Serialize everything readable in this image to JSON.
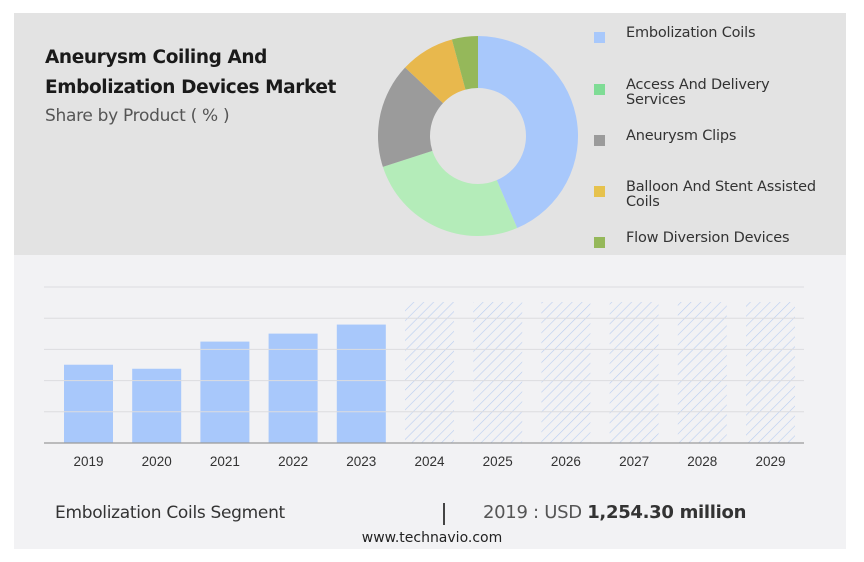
{
  "header": {
    "title_line1": "Aneurysm Coiling And",
    "title_line2": "Embolization Devices Market",
    "subtitle": "Share by Product ( % )"
  },
  "chart_data": [
    {
      "type": "pie",
      "variant": "donut",
      "title": "Share by Product ( % )",
      "legend_position": "right",
      "slices": [
        {
          "label": "Embolization Coils",
          "value": 43.6,
          "color": "#a8c8fb"
        },
        {
          "label": "Access And Delivery Services",
          "value": 26.4,
          "color": "#b4ecb9"
        },
        {
          "label": "Aneurysm Clips",
          "value": 17.0,
          "color": "#9b9b9b"
        },
        {
          "label": "Balloon And Stent Assisted Coils",
          "value": 8.8,
          "color": "#e8b84d"
        },
        {
          "label": "Flow Diversion Devices",
          "value": 4.2,
          "color": "#95b85a"
        }
      ],
      "legend": [
        {
          "label": "Embolization Coils",
          "color": "#a8c8fb"
        },
        {
          "label": "Access And Delivery Services",
          "color": "#7fdc95"
        },
        {
          "label": "Aneurysm Clips",
          "color": "#9b9b9b"
        },
        {
          "label": "Balloon And Stent Assisted Coils",
          "color": "#e6c24d"
        },
        {
          "label": "Flow Diversion Devices",
          "color": "#95b85a"
        }
      ]
    },
    {
      "type": "bar",
      "title": "Embolization Coils Segment",
      "xlabel": "",
      "ylabel": "USD million",
      "categories": [
        "2019",
        "2020",
        "2021",
        "2022",
        "2023",
        "2024",
        "2025",
        "2026",
        "2027",
        "2028",
        "2029"
      ],
      "values": [
        1254.3,
        1190,
        1625,
        1753,
        1898,
        null,
        null,
        null,
        null,
        null,
        null
      ],
      "forecast_categories": [
        "2024",
        "2025",
        "2026",
        "2027",
        "2028",
        "2029"
      ],
      "forecast_style": "hatched-placeholder",
      "ylim": [
        0,
        2500
      ],
      "grid": true,
      "y_tick_labels_visible": false,
      "bar_color": "#a8c8fb"
    }
  ],
  "footer": {
    "segment_label": "Embolization Coils Segment",
    "divider": "|",
    "value_prefix": "2019 : USD ",
    "value_bold": "1,254.30 million",
    "website": "www.technavio.com"
  }
}
